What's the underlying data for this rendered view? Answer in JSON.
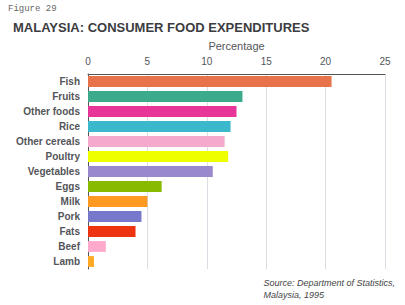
{
  "chart_data": {
    "type": "bar",
    "orientation": "horizontal",
    "title": "MALAYSIA: CONSUMER FOOD EXPENDITURES",
    "xlabel": "Percentage",
    "annotations": [
      "Figure 29",
      "Source: Department of Statistics,\nMalaysia, 1995"
    ],
    "categories": [
      "Fish",
      "Fruits",
      "Other foods",
      "Rice",
      "Other cereals",
      "Poultry",
      "Vegetables",
      "Eggs",
      "Milk",
      "Pork",
      "Fats",
      "Beef",
      "Lamb"
    ],
    "values": [
      20.5,
      13.0,
      12.5,
      12.0,
      11.5,
      11.8,
      10.5,
      6.2,
      5.0,
      4.5,
      4.0,
      1.5,
      0.5
    ],
    "colors": [
      "#E8724A",
      "#3BAB8C",
      "#E8359A",
      "#3BB8CC",
      "#F5AACC",
      "#EEFF00",
      "#9988CC",
      "#88BB00",
      "#FF9922",
      "#7777CC",
      "#EE3311",
      "#FFAACC",
      "#FFAA22"
    ],
    "xlim": [
      0,
      25
    ],
    "xticks": [
      0,
      5,
      10,
      15,
      20,
      25
    ],
    "grid": true
  }
}
